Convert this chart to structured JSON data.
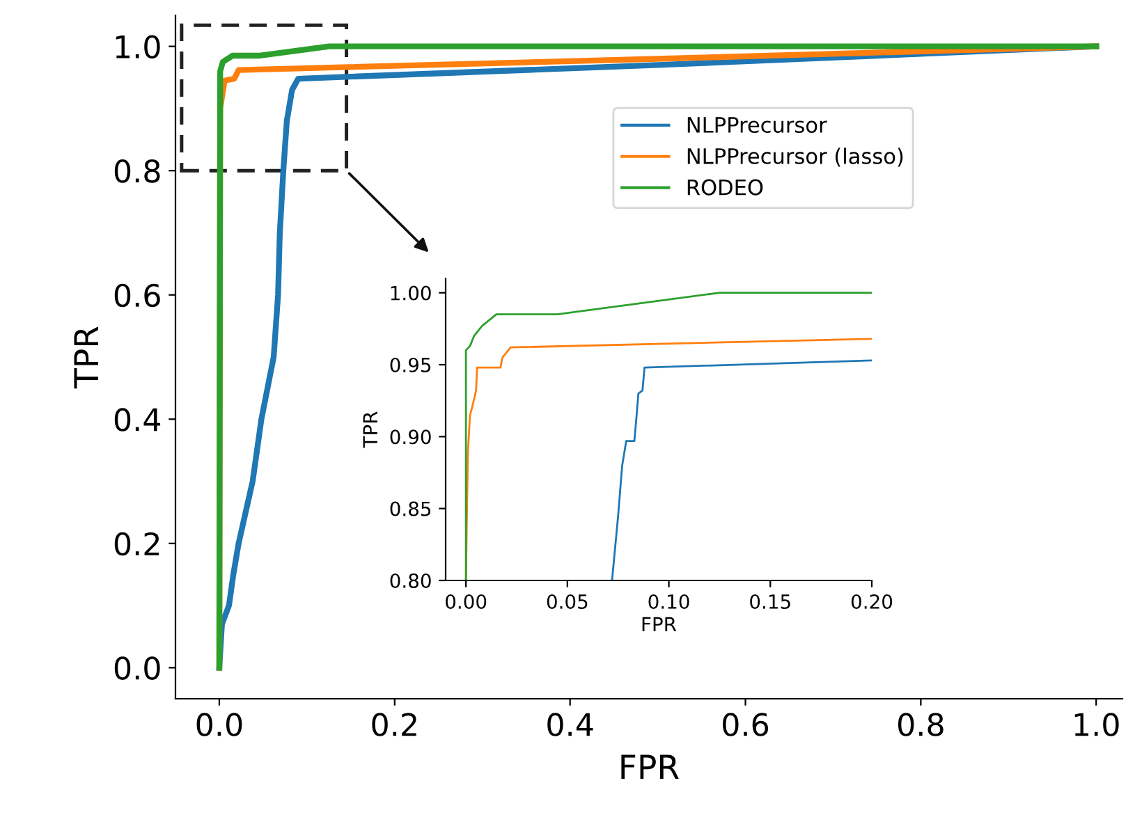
{
  "chart_data": [
    {
      "type": "line",
      "xlabel": "FPR",
      "ylabel": "TPR",
      "xlim": [
        -0.05,
        1.03
      ],
      "ylim": [
        -0.05,
        1.05
      ],
      "xticks": [
        {
          "value": 0,
          "label": "0.0"
        },
        0.2,
        0.4,
        0.6,
        0.8,
        {
          "value": 1,
          "label": "1.0"
        }
      ],
      "yticks": [
        {
          "value": 0,
          "label": "0.0"
        },
        0.2,
        0.4,
        0.6,
        0.8,
        {
          "value": 1,
          "label": "1.0"
        }
      ],
      "legend": "top right",
      "grid": false,
      "series": [
        {
          "name": "NLPPrecursor",
          "color": "#1f77b4",
          "x": [
            0,
            0.003,
            0.011,
            0.016,
            0.022,
            0.03,
            0.038,
            0.048,
            0.062,
            0.067,
            0.069,
            0.073,
            0.077,
            0.083,
            0.09,
            0.5,
            1.0
          ],
          "values": [
            0,
            0.07,
            0.1,
            0.15,
            0.2,
            0.25,
            0.3,
            0.4,
            0.5,
            0.6,
            0.7,
            0.8,
            0.88,
            0.93,
            0.948,
            0.97,
            1.0
          ]
        },
        {
          "name": "NLPPrecursor (lasso)",
          "color": "#ff7f0e",
          "x": [
            0,
            0.001,
            0.006,
            0.017,
            0.022,
            0.5,
            1.0
          ],
          "values": [
            0,
            0.9,
            0.945,
            0.948,
            0.962,
            0.98,
            1.0
          ]
        },
        {
          "name": "RODEO",
          "color": "#2ca02c",
          "x": [
            0,
            0.001,
            0.004,
            0.015,
            0.045,
            0.125,
            1.0
          ],
          "values": [
            0,
            0.96,
            0.975,
            0.985,
            0.985,
            1.0,
            1.0
          ]
        }
      ]
    },
    {
      "type": "line",
      "xlabel": "FPR",
      "ylabel": "TPR",
      "xlim": [
        -0.01,
        0.2
      ],
      "ylim": [
        0.8,
        1.01
      ],
      "xticks": [
        {
          "value": 0.0,
          "label": "0.00"
        },
        0.05,
        {
          "value": 0.1,
          "label": "0.10"
        },
        0.15,
        {
          "value": 0.2,
          "label": "0.20"
        }
      ],
      "yticks": [
        {
          "value": 0.8,
          "label": "0.80"
        },
        0.85,
        {
          "value": 0.9,
          "label": "0.90"
        },
        0.95,
        {
          "value": 1.0,
          "label": "1.00"
        }
      ],
      "grid": false,
      "series": [
        {
          "color": "#1f77b4",
          "x": [
            0.072,
            0.075,
            0.077,
            0.079,
            0.083,
            0.084,
            0.085,
            0.087,
            0.088,
            0.2
          ],
          "values": [
            0.8,
            0.845,
            0.88,
            0.897,
            0.897,
            0.913,
            0.93,
            0.932,
            0.948,
            0.953
          ]
        },
        {
          "color": "#ff7f0e",
          "x": [
            0,
            0.0005,
            0.001,
            0.002,
            0.003,
            0.005,
            0.0055,
            0.017,
            0.018,
            0.022,
            0.2
          ],
          "values": [
            0.8,
            0.85,
            0.89,
            0.915,
            0.92,
            0.932,
            0.948,
            0.948,
            0.955,
            0.962,
            0.968
          ]
        },
        {
          "color": "#2ca02c",
          "x": [
            0,
            0,
            0.002,
            0.004,
            0.008,
            0.015,
            0.045,
            0.125,
            0.2
          ],
          "values": [
            0.8,
            0.96,
            0.963,
            0.97,
            0.977,
            0.985,
            0.985,
            1.0,
            1.0
          ]
        }
      ]
    }
  ]
}
